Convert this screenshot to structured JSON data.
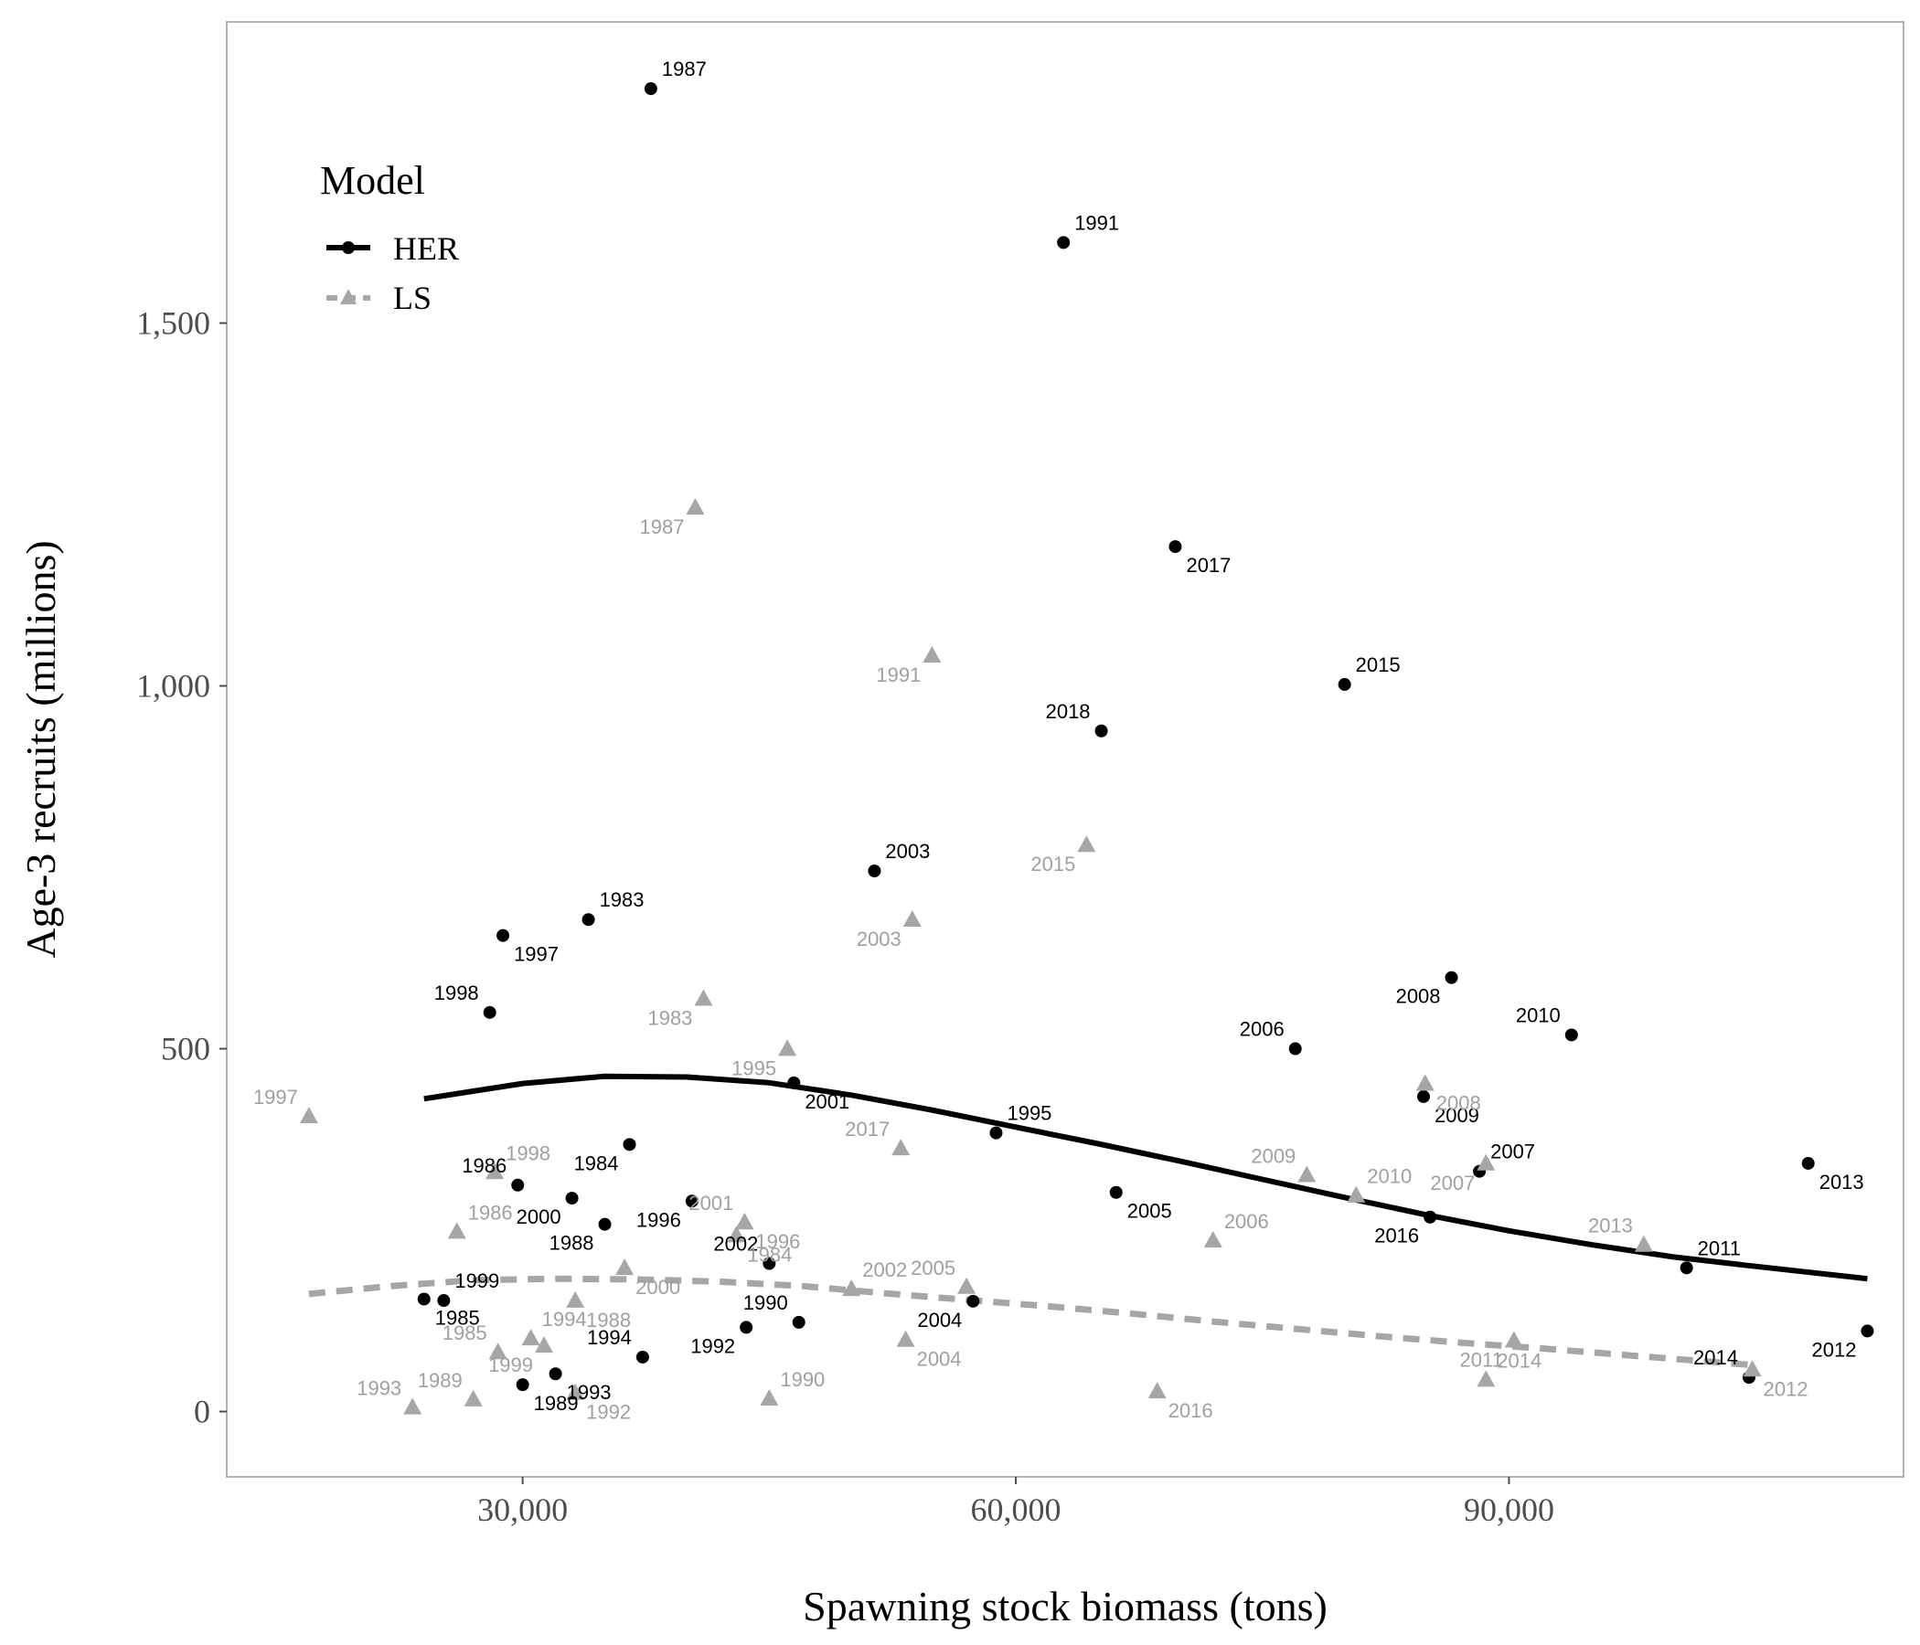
{
  "chart_data": {
    "type": "scatter",
    "xlabel": "Spawning stock biomass (tons)",
    "ylabel": "Age-3 recruits (millions)",
    "xlim": [
      12000,
      114000
    ],
    "ylim": [
      -90,
      1915
    ],
    "x_ticks": [
      30000,
      60000,
      90000
    ],
    "x_tick_labels": [
      "30,000",
      "60,000",
      "90,000"
    ],
    "y_ticks": [
      0,
      500,
      1000,
      1500
    ],
    "y_tick_labels": [
      "0",
      "500",
      "1,000",
      "1,500"
    ],
    "grid": false,
    "legend": {
      "title": "Model",
      "placement": "top-left",
      "entries": [
        "HER",
        "LS"
      ]
    },
    "series": [
      {
        "name": "HER",
        "color": "#000000",
        "marker": "circle",
        "line_style": "solid",
        "points": [
          {
            "label": "1983",
            "x": 34000,
            "y": 678
          },
          {
            "label": "1984",
            "x": 36500,
            "y": 368
          },
          {
            "label": "1985",
            "x": 24000,
            "y": 155
          },
          {
            "label": "1986",
            "x": 29700,
            "y": 312
          },
          {
            "label": "1987",
            "x": 37800,
            "y": 1823
          },
          {
            "label": "1988",
            "x": 35000,
            "y": 258
          },
          {
            "label": "1989",
            "x": 30000,
            "y": 37
          },
          {
            "label": "1990",
            "x": 46800,
            "y": 123
          },
          {
            "label": "1991",
            "x": 62900,
            "y": 1611
          },
          {
            "label": "1992",
            "x": 43600,
            "y": 116
          },
          {
            "label": "1993",
            "x": 32000,
            "y": 52
          },
          {
            "label": "1994",
            "x": 37300,
            "y": 75
          },
          {
            "label": "1995",
            "x": 58800,
            "y": 384
          },
          {
            "label": "1996",
            "x": 40300,
            "y": 290
          },
          {
            "label": "1997",
            "x": 28800,
            "y": 656
          },
          {
            "label": "1998",
            "x": 28000,
            "y": 550
          },
          {
            "label": "1999",
            "x": 25200,
            "y": 153
          },
          {
            "label": "2000",
            "x": 33000,
            "y": 294
          },
          {
            "label": "2001",
            "x": 46500,
            "y": 453
          },
          {
            "label": "2002",
            "x": 45000,
            "y": 204
          },
          {
            "label": "2003",
            "x": 51400,
            "y": 745
          },
          {
            "label": "2004",
            "x": 57400,
            "y": 152
          },
          {
            "label": "2005",
            "x": 66100,
            "y": 302
          },
          {
            "label": "2006",
            "x": 77000,
            "y": 500
          },
          {
            "label": "2007",
            "x": 88200,
            "y": 331
          },
          {
            "label": "2008",
            "x": 86500,
            "y": 598
          },
          {
            "label": "2009",
            "x": 84800,
            "y": 434
          },
          {
            "label": "2010",
            "x": 93800,
            "y": 519
          },
          {
            "label": "2011",
            "x": 100800,
            "y": 198
          },
          {
            "label": "2012",
            "x": 111800,
            "y": 111
          },
          {
            "label": "2013",
            "x": 108200,
            "y": 342
          },
          {
            "label": "2014",
            "x": 104600,
            "y": 47
          },
          {
            "label": "2015",
            "x": 80000,
            "y": 1002
          },
          {
            "label": "2016",
            "x": 85200,
            "y": 268
          },
          {
            "label": "2017",
            "x": 69700,
            "y": 1192
          },
          {
            "label": "2018",
            "x": 65200,
            "y": 938
          }
        ],
        "fit_line": {
          "x": [
            24000,
            30000,
            35000,
            40000,
            45000,
            50000,
            55000,
            60000,
            65000,
            70000,
            75000,
            80000,
            85000,
            90000,
            95000,
            100000,
            105000,
            111800
          ],
          "y": [
            431,
            452,
            462,
            461,
            453,
            436,
            415,
            392,
            369,
            345,
            320,
            295,
            271,
            249,
            230,
            213,
            200,
            183
          ]
        }
      },
      {
        "name": "LS",
        "color": "#a6a6a6",
        "marker": "triangle",
        "line_style": "dashed",
        "points": [
          {
            "label": "1983",
            "x": 41000,
            "y": 568
          },
          {
            "label": "1984",
            "x": 43000,
            "y": 242
          },
          {
            "label": "1985",
            "x": 28500,
            "y": 81
          },
          {
            "label": "1986",
            "x": 26000,
            "y": 247
          },
          {
            "label": "1987",
            "x": 40500,
            "y": 1245
          },
          {
            "label": "1988",
            "x": 33200,
            "y": 152
          },
          {
            "label": "1989",
            "x": 27000,
            "y": 16
          },
          {
            "label": "1990",
            "x": 45000,
            "y": 17
          },
          {
            "label": "1991",
            "x": 54900,
            "y": 1041
          },
          {
            "label": "1992",
            "x": 33200,
            "y": 25
          },
          {
            "label": "1993",
            "x": 23300,
            "y": 5
          },
          {
            "label": "1994",
            "x": 30500,
            "y": 100
          },
          {
            "label": "1995",
            "x": 46100,
            "y": 499
          },
          {
            "label": "1996",
            "x": 43500,
            "y": 260
          },
          {
            "label": "1997",
            "x": 17000,
            "y": 406
          },
          {
            "label": "1998",
            "x": 28300,
            "y": 329
          },
          {
            "label": "1999",
            "x": 31300,
            "y": 90
          },
          {
            "label": "2000",
            "x": 36200,
            "y": 197
          },
          {
            "label": "2001",
            "x": 43500,
            "y": 260
          },
          {
            "label": "2002",
            "x": 50000,
            "y": 168
          },
          {
            "label": "2003",
            "x": 53700,
            "y": 677
          },
          {
            "label": "2004",
            "x": 53300,
            "y": 98
          },
          {
            "label": "2005",
            "x": 57000,
            "y": 171
          },
          {
            "label": "2006",
            "x": 72000,
            "y": 235
          },
          {
            "label": "2007",
            "x": 88600,
            "y": 341
          },
          {
            "label": "2008",
            "x": 84900,
            "y": 451
          },
          {
            "label": "2009",
            "x": 77700,
            "y": 325
          },
          {
            "label": "2010",
            "x": 80700,
            "y": 297
          },
          {
            "label": "2011",
            "x": 90300,
            "y": 97
          },
          {
            "label": "2012",
            "x": 104800,
            "y": 57
          },
          {
            "label": "2013",
            "x": 98200,
            "y": 229
          },
          {
            "label": "2014",
            "x": 88600,
            "y": 43
          },
          {
            "label": "2015",
            "x": 64300,
            "y": 780
          },
          {
            "label": "2016",
            "x": 68600,
            "y": 27
          },
          {
            "label": "2017",
            "x": 53000,
            "y": 362
          }
        ],
        "fit_line": {
          "x": [
            17000,
            22000,
            27000,
            32000,
            37000,
            42000,
            47000,
            52000,
            57000,
            62000,
            67000,
            72000,
            77000,
            82000,
            87000,
            92000,
            97000,
            104800
          ],
          "y": [
            162,
            173,
            181,
            183,
            182,
            179,
            173,
            163,
            154,
            145,
            135,
            124,
            114,
            104,
            95,
            87,
            78,
            64
          ]
        }
      }
    ]
  }
}
